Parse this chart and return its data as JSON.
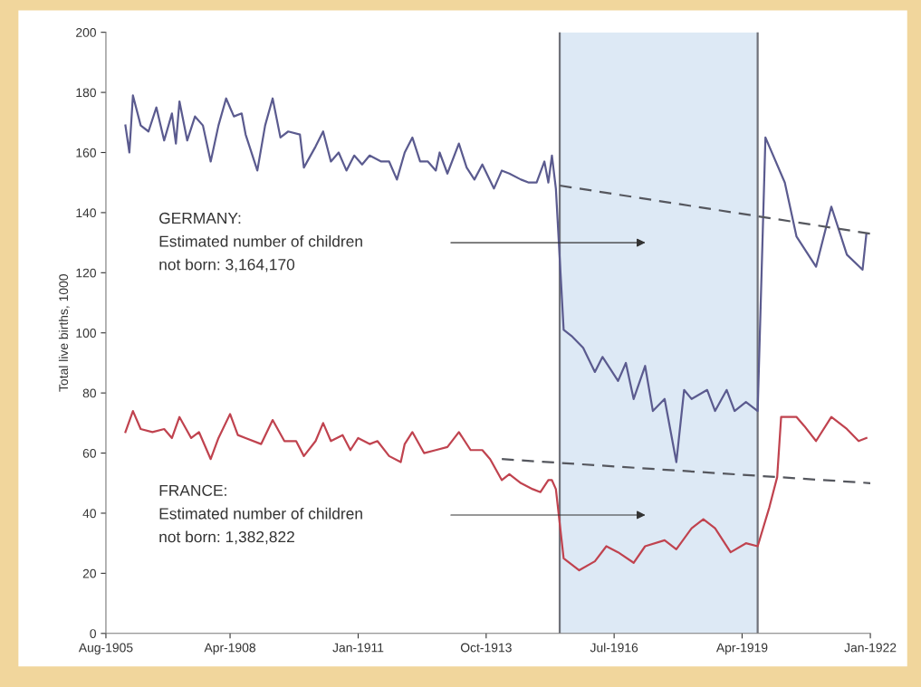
{
  "chart_data": {
    "type": "line",
    "ylabel": "Total live births, 1000",
    "xlim": [
      "1905-08",
      "1922-01"
    ],
    "ylim": [
      0,
      200
    ],
    "xticks": [
      {
        "value": "1905-08",
        "label": "Aug-1905"
      },
      {
        "value": "1908-04",
        "label": "Apr-1908"
      },
      {
        "value": "1911-01",
        "label": "Jan-1911"
      },
      {
        "value": "1913-10",
        "label": "Oct-1913"
      },
      {
        "value": "1916-07",
        "label": "Jul-1916"
      },
      {
        "value": "1919-04",
        "label": "Apr-1919"
      },
      {
        "value": "1922-01",
        "label": "Jan-1922"
      }
    ],
    "yticks": [
      0,
      20,
      40,
      60,
      80,
      100,
      120,
      140,
      160,
      180,
      200
    ],
    "bands": [
      {
        "axis": "x",
        "from": "1915-05",
        "to": "1919-08",
        "color": "#dde9f5"
      }
    ],
    "ref_lines": [
      {
        "axis": "x",
        "value": "1915-05",
        "color": "#70727a"
      },
      {
        "axis": "x",
        "value": "1919-08",
        "color": "#70727a"
      }
    ],
    "series": [
      {
        "color": "#5b5b8f",
        "x": [
          "1906-01",
          "1906-02",
          "1906-03",
          "1906-05",
          "1906-07",
          "1906-09",
          "1906-11",
          "1907-01",
          "1907-02",
          "1907-03",
          "1907-05",
          "1907-07",
          "1907-09",
          "1907-11",
          "1908-01",
          "1908-03",
          "1908-05",
          "1908-07",
          "1908-08",
          "1908-11",
          "1909-01",
          "1909-03",
          "1909-05",
          "1909-07",
          "1909-10",
          "1909-11",
          "1910-02",
          "1910-04",
          "1910-06",
          "1910-08",
          "1910-10",
          "1910-12",
          "1911-02",
          "1911-04",
          "1911-07",
          "1911-09",
          "1911-11",
          "1912-01",
          "1912-03",
          "1912-05",
          "1912-07",
          "1912-09",
          "1912-10",
          "1912-12",
          "1913-03",
          "1913-05",
          "1913-07",
          "1913-09",
          "1913-12",
          "1914-02",
          "1914-04",
          "1914-07",
          "1914-09",
          "1914-11",
          "1915-01",
          "1915-02",
          "1915-03",
          "1915-04",
          "1915-06",
          "1915-08",
          "1915-11",
          "1916-02",
          "1916-04",
          "1916-08",
          "1916-10",
          "1916-12",
          "1917-03",
          "1917-05",
          "1917-08",
          "1917-11",
          "1918-01",
          "1918-03",
          "1918-07",
          "1918-09",
          "1918-12",
          "1919-02",
          "1919-05",
          "1919-08",
          "1919-10",
          "1920-03",
          "1920-06",
          "1920-11",
          "1921-03",
          "1921-07",
          "1921-11",
          "1921-12"
        ],
        "values": [
          169,
          160,
          179,
          169,
          167,
          175,
          164,
          173,
          163,
          177,
          164,
          172,
          169,
          157,
          169,
          178,
          172,
          173,
          166,
          154,
          169,
          178,
          165,
          167,
          166,
          155,
          162,
          167,
          157,
          160,
          154,
          159,
          156,
          159,
          157,
          157,
          151,
          160,
          165,
          157,
          157,
          154,
          160,
          153,
          163,
          155,
          151,
          156,
          148,
          154,
          153,
          151,
          150,
          150,
          157,
          150,
          159,
          148,
          101,
          99,
          95,
          87,
          92,
          84,
          90,
          78,
          89,
          74,
          78,
          57,
          81,
          78,
          81,
          74,
          81,
          74,
          77,
          74,
          165,
          150,
          132,
          122,
          142,
          126,
          121,
          133
        ]
      },
      {
        "color": "#c0434f",
        "x": [
          "1906-01",
          "1906-03",
          "1906-05",
          "1906-08",
          "1906-11",
          "1907-01",
          "1907-03",
          "1907-06",
          "1907-08",
          "1907-11",
          "1908-01",
          "1908-04",
          "1908-06",
          "1908-08",
          "1908-12",
          "1909-03",
          "1909-06",
          "1909-09",
          "1909-11",
          "1910-02",
          "1910-04",
          "1910-06",
          "1910-09",
          "1910-11",
          "1911-01",
          "1911-04",
          "1911-06",
          "1911-09",
          "1911-12",
          "1912-01",
          "1912-03",
          "1912-06",
          "1912-09",
          "1912-12",
          "1913-03",
          "1913-06",
          "1913-09",
          "1913-11",
          "1914-02",
          "1914-04",
          "1914-07",
          "1914-10",
          "1914-12",
          "1915-02",
          "1915-03",
          "1915-04",
          "1915-06",
          "1915-10",
          "1916-02",
          "1916-05",
          "1916-08",
          "1916-12",
          "1917-03",
          "1917-08",
          "1917-11",
          "1918-03",
          "1918-06",
          "1918-09",
          "1919-01",
          "1919-05",
          "1919-08",
          "1919-11",
          "1920-01",
          "1920-02",
          "1920-06",
          "1920-08",
          "1920-11",
          "1921-03",
          "1921-07",
          "1921-10",
          "1921-12"
        ],
        "values": [
          67,
          74,
          68,
          67,
          68,
          65,
          72,
          65,
          67,
          58,
          65,
          73,
          66,
          65,
          63,
          71,
          64,
          64,
          59,
          64,
          70,
          64,
          66,
          61,
          65,
          63,
          64,
          59,
          57,
          63,
          67,
          60,
          61,
          62,
          67,
          61,
          61,
          58,
          51,
          53,
          50,
          48,
          47,
          51,
          51,
          48,
          25,
          21,
          24,
          29,
          27,
          23.5,
          29,
          31,
          28,
          35,
          38,
          35,
          27,
          30,
          29,
          42,
          52,
          72,
          72,
          69,
          64,
          72,
          68,
          64,
          65
        ]
      },
      {
        "color": "#55575e",
        "line_style": "dashed",
        "x": [
          "1915-05",
          "1922-01"
        ],
        "values": [
          149,
          133
        ]
      },
      {
        "color": "#55575e",
        "line_style": "dashed",
        "x": [
          "1914-02",
          "1922-01"
        ],
        "values": [
          58,
          50
        ]
      }
    ],
    "annotations": [
      "GERMANY:\nEstimated number of children\nnot born: 3,164,170",
      "FRANCE:\nEstimated number of children\nnot born: 1,382,822"
    ]
  }
}
